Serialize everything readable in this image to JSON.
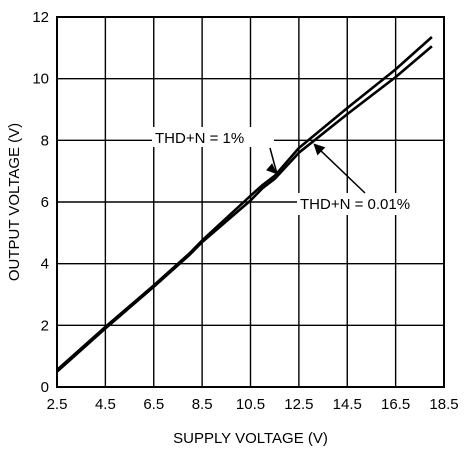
{
  "chart_data": {
    "type": "line",
    "xlabel": "SUPPLY VOLTAGE (V)",
    "ylabel": "OUTPUT VOLTAGE (V)",
    "xlim": [
      2.5,
      18.5
    ],
    "ylim": [
      0,
      12
    ],
    "xticks": [
      2.5,
      4.5,
      6.5,
      8.5,
      10.5,
      12.5,
      14.5,
      16.5,
      18.5
    ],
    "xtick_labels": [
      "2.5",
      "4.5",
      "6.5",
      "8.5",
      "10.5",
      "12.5",
      "14.5",
      "16.5",
      "18.5"
    ],
    "yticks": [
      0,
      2,
      4,
      6,
      8,
      10,
      12
    ],
    "ytick_labels": [
      "0",
      "2",
      "4",
      "6",
      "8",
      "10",
      "12"
    ],
    "grid": true,
    "legend": "none",
    "series": [
      {
        "name": "THD+N = 1%",
        "x": [
          2.5,
          4.5,
          6.5,
          8.0,
          8.5,
          10.5,
          11.0,
          11.5,
          12.5,
          14.5,
          16.5,
          18.0
        ],
        "y": [
          0.55,
          1.95,
          3.3,
          4.35,
          4.75,
          6.2,
          6.55,
          6.85,
          7.75,
          9.05,
          10.3,
          11.35
        ]
      },
      {
        "name": "THD+N = 0.01%",
        "x": [
          2.5,
          4.5,
          6.5,
          8.0,
          8.5,
          10.5,
          11.0,
          11.5,
          12.5,
          14.5,
          16.5,
          18.0
        ],
        "y": [
          0.5,
          1.9,
          3.25,
          4.3,
          4.7,
          6.05,
          6.45,
          6.75,
          7.6,
          8.85,
          10.05,
          11.05
        ]
      }
    ],
    "annotations": [
      {
        "text": "THD+N = 1%",
        "target_x": 11.6,
        "target_y": 6.9
      },
      {
        "text": "THD+N = 0.01%",
        "target_x": 13.1,
        "target_y": 7.9
      }
    ]
  }
}
